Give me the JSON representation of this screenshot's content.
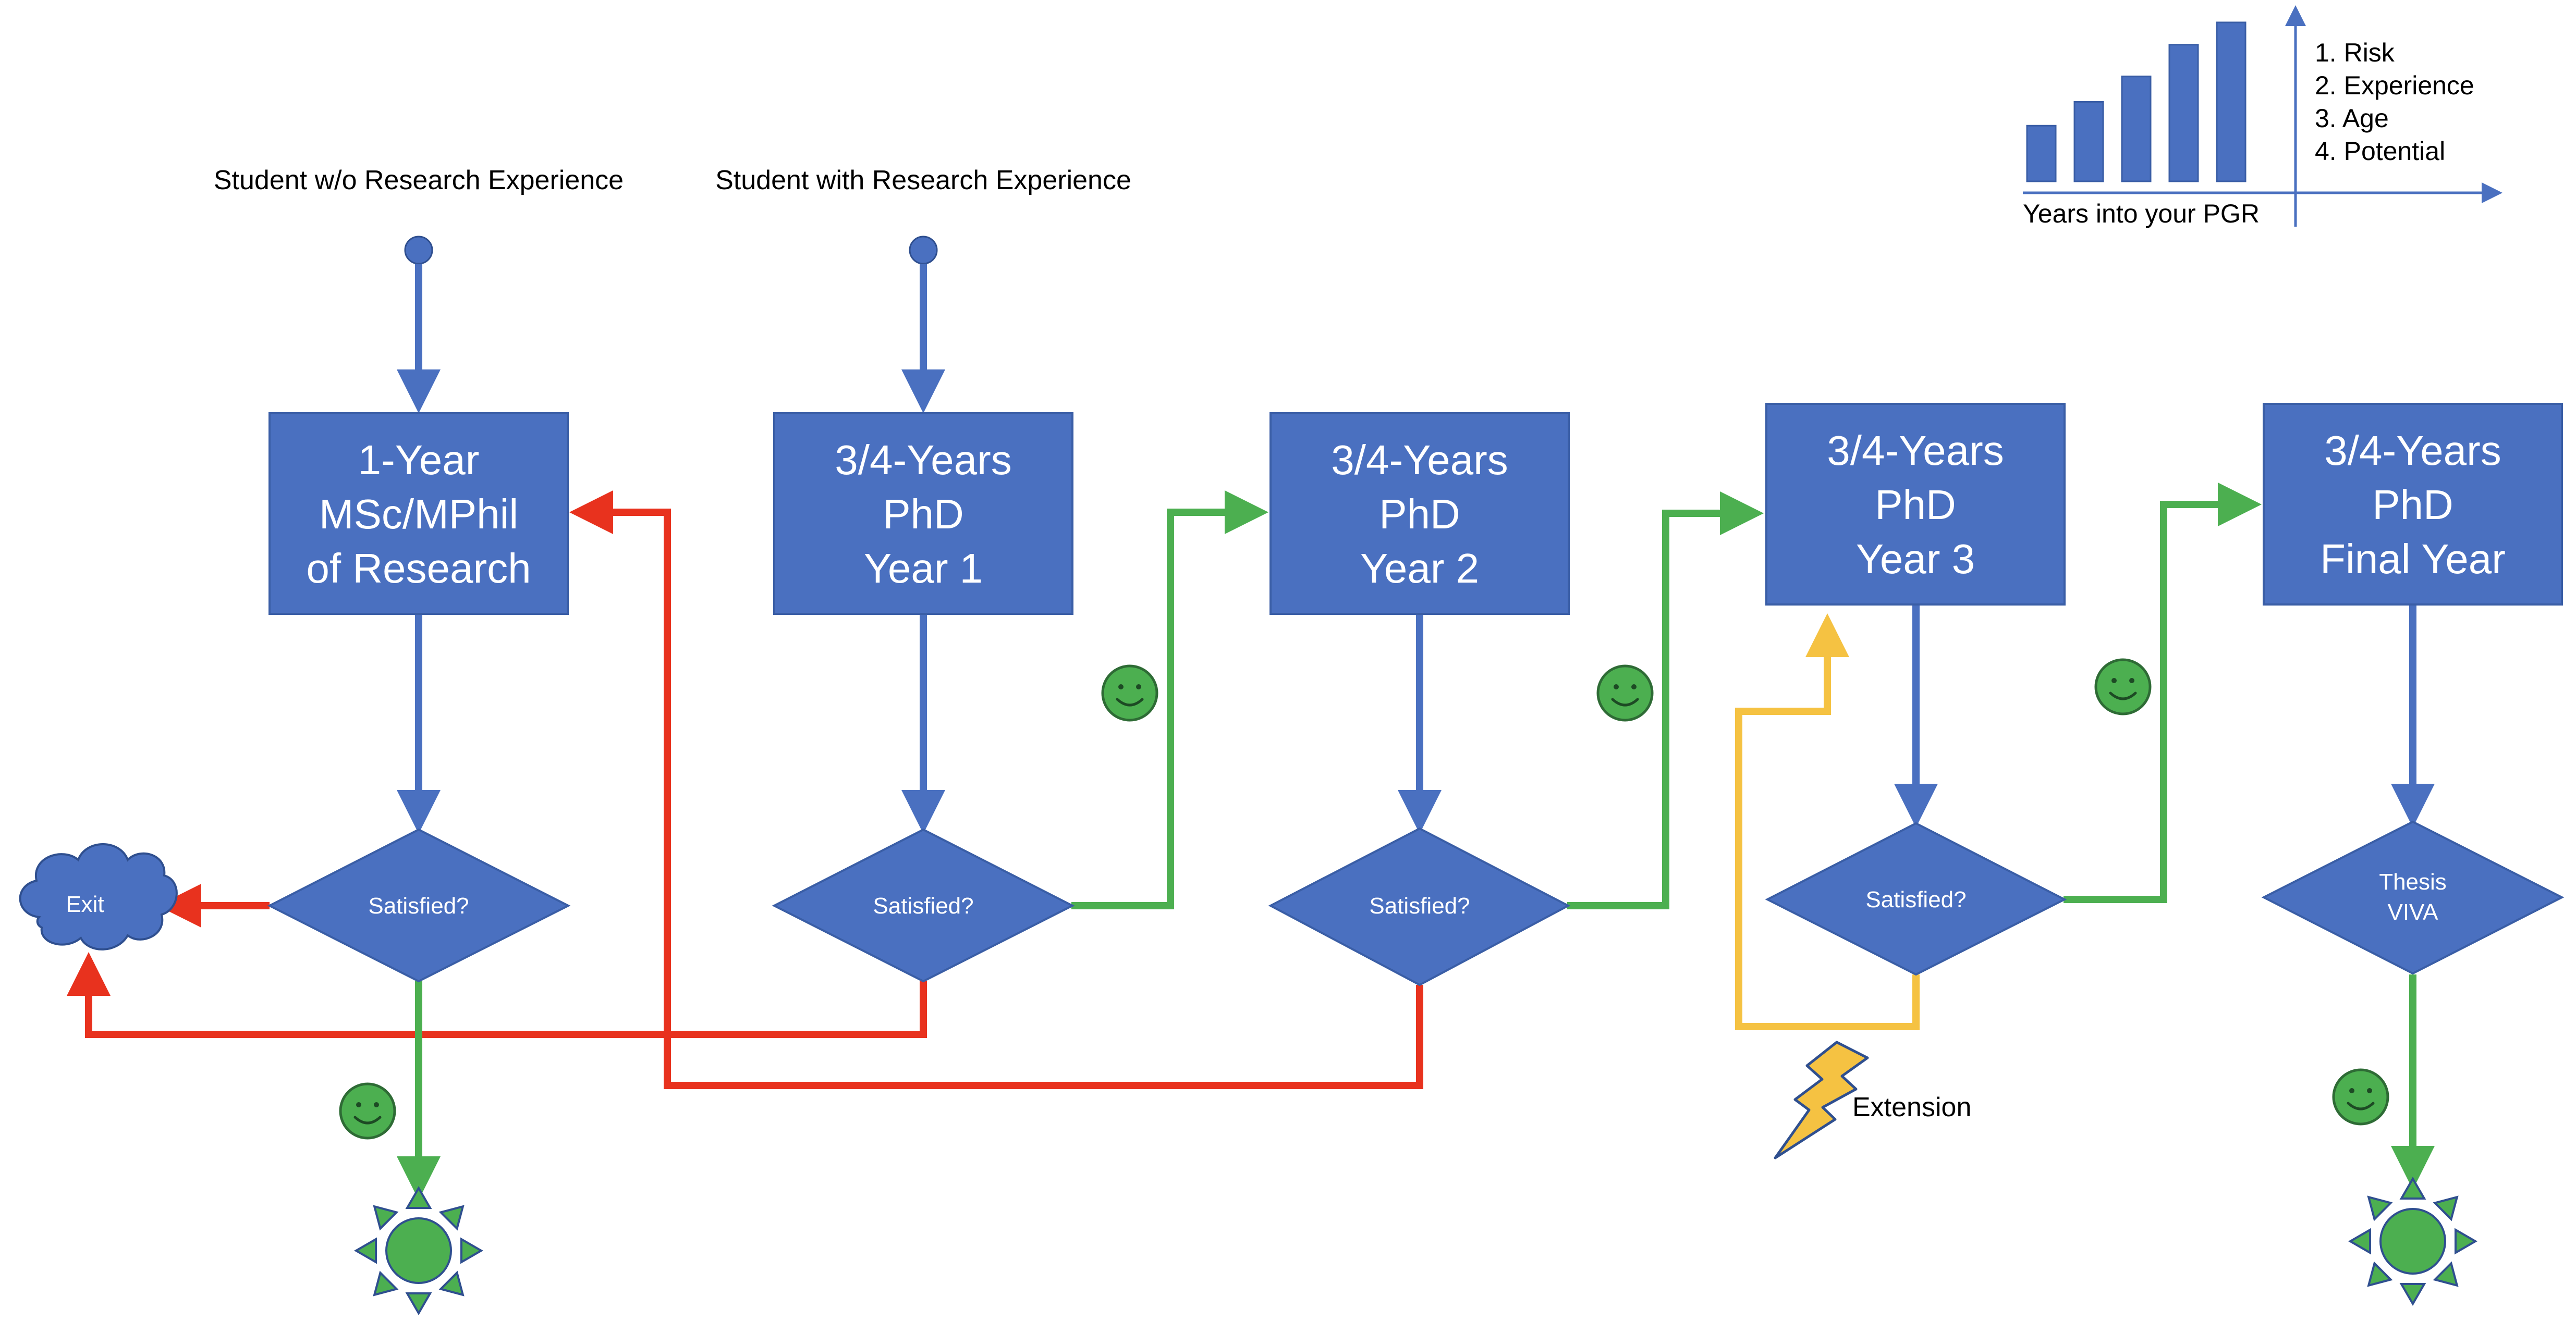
{
  "starts": {
    "no_research": "Student w/o Research Experience",
    "with_research": "Student with Research Experience"
  },
  "boxes": {
    "msc": [
      "1-Year",
      "MSc/MPhil",
      "of Research"
    ],
    "year1": [
      "3/4-Years",
      "PhD",
      "Year 1"
    ],
    "year2": [
      "3/4-Years",
      "PhD",
      "Year 2"
    ],
    "year3": [
      "3/4-Years",
      "PhD",
      "Year 3"
    ],
    "final": [
      "3/4-Years",
      "PhD",
      "Final Year"
    ]
  },
  "decisions": {
    "msc": [
      "Satisfied?"
    ],
    "year1": [
      "Satisfied?"
    ],
    "year2": [
      "Satisfied?"
    ],
    "year3": [
      "Satisfied?"
    ],
    "final": [
      "Thesis",
      "VIVA"
    ]
  },
  "exit_label": "Exit",
  "extension_label": "Extension",
  "legend": {
    "items": [
      "1. Risk",
      "2. Experience",
      "3. Age",
      "4. Potential"
    ],
    "axis_label": "Years into your PGR",
    "bar_levels": [
      0.35,
      0.5,
      0.66,
      0.86,
      1.0
    ]
  },
  "colors": {
    "box": "#4A70C0",
    "success": "#4CAF50",
    "fail": "#E8321E",
    "extension": "#F5C242"
  }
}
